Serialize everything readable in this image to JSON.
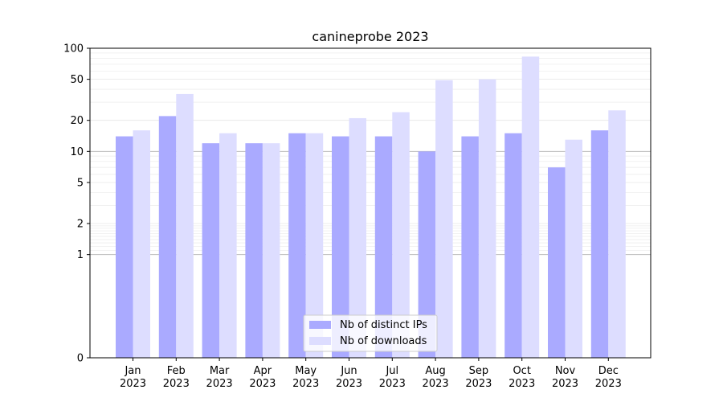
{
  "chart_data": {
    "type": "bar",
    "title": "canineprobe 2023",
    "xlabel": "",
    "ylabel": "",
    "y_scale": "symlog",
    "ylim": [
      0,
      100
    ],
    "y_ticks": [
      0,
      1,
      2,
      5,
      10,
      20,
      50,
      100
    ],
    "y_tick_labels": [
      "0",
      "1",
      "2",
      "5",
      "10",
      "20",
      "50",
      "100"
    ],
    "categories": [
      "Jan\n2023",
      "Feb\n2023",
      "Mar\n2023",
      "Apr\n2023",
      "May\n2023",
      "Jun\n2023",
      "Jul\n2023",
      "Aug\n2023",
      "Sep\n2023",
      "Oct\n2023",
      "Nov\n2023",
      "Dec\n2023"
    ],
    "series": [
      {
        "name": "Nb of distinct IPs",
        "color": "#aaaaff",
        "values": [
          14,
          22,
          12,
          12,
          15,
          14,
          14,
          10,
          14,
          15,
          7,
          16
        ]
      },
      {
        "name": "Nb of downloads",
        "color": "#ddddff",
        "values": [
          16,
          36,
          15,
          12,
          15,
          21,
          24,
          49,
          50,
          83,
          13,
          25
        ]
      }
    ],
    "grid": "horizontal",
    "legend_position": "bottom-center"
  }
}
